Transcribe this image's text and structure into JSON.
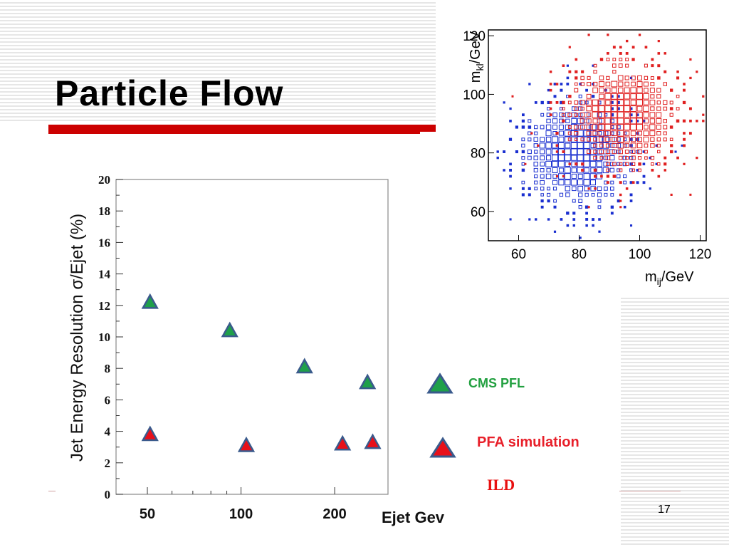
{
  "slide": {
    "title": "Particle Flow",
    "page_number": "17",
    "legend": {
      "cms": "CMS PFL",
      "pfa": "PFA simulation",
      "detector": "ILD"
    },
    "colors": {
      "accent_bar": "#cc0000",
      "cms_fill": "#1fa04a",
      "pfa_fill": "#e8101a",
      "marker_edge": "#3a5a8c",
      "blue_box": "#1a2fd0",
      "red_box": "#e02020"
    }
  },
  "chart_data": [
    {
      "type": "scatter",
      "title": "",
      "xlabel": "Ejet Gev",
      "ylabel": "Jet Energy Resolution σ/Ejet (%)",
      "x_scale": "log",
      "x_ticks": [
        50,
        100,
        200
      ],
      "y_ticks": [
        0,
        2,
        4,
        6,
        8,
        10,
        12,
        14,
        16,
        18,
        20
      ],
      "ylim": [
        0,
        20
      ],
      "grid": false,
      "series": [
        {
          "name": "CMS PFL",
          "marker": "triangle",
          "color": "#1fa04a",
          "points": [
            {
              "x": 51,
              "y": 12.2
            },
            {
              "x": 92,
              "y": 10.4
            },
            {
              "x": 160,
              "y": 8.1
            },
            {
              "x": 255,
              "y": 7.1
            }
          ]
        },
        {
          "name": "PFA simulation",
          "marker": "triangle",
          "color": "#e8101a",
          "points": [
            {
              "x": 51,
              "y": 3.8
            },
            {
              "x": 104,
              "y": 3.1
            },
            {
              "x": 212,
              "y": 3.2
            },
            {
              "x": 265,
              "y": 3.3
            }
          ]
        }
      ]
    },
    {
      "type": "heatmap",
      "title": "",
      "xlabel": "m_ij/GeV",
      "ylabel": "m_kl/GeV",
      "xlim": [
        50,
        122
      ],
      "ylim": [
        50,
        122
      ],
      "x_ticks": [
        60,
        80,
        100,
        120
      ],
      "y_ticks": [
        60,
        80,
        100,
        120
      ],
      "series": [
        {
          "name": "",
          "color": "#1a2fd0",
          "center": [
            79,
            80
          ],
          "spread": 11
        },
        {
          "name": "",
          "color": "#e02020",
          "center": [
            93,
            93
          ],
          "spread": 11
        }
      ]
    }
  ]
}
